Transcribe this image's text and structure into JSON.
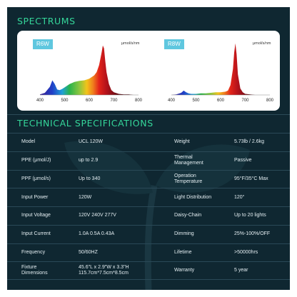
{
  "sections": {
    "spectrums_title": "SPECTRUMS",
    "specs_title": "TECHNICAL SPECIFICATIONS"
  },
  "chart_data": [
    {
      "type": "area",
      "label": "R6W",
      "ylabel": "μmol/s/nm",
      "x_ticks": [
        400,
        500,
        600,
        700,
        800
      ],
      "xlim": [
        400,
        800
      ],
      "x": [
        400,
        420,
        440,
        450,
        460,
        470,
        480,
        490,
        500,
        520,
        540,
        560,
        580,
        600,
        620,
        630,
        640,
        650,
        655,
        660,
        665,
        670,
        680,
        690,
        700,
        720,
        740,
        760,
        780,
        800
      ],
      "y": [
        0.01,
        0.04,
        0.15,
        0.27,
        0.2,
        0.1,
        0.09,
        0.11,
        0.14,
        0.2,
        0.24,
        0.26,
        0.27,
        0.3,
        0.36,
        0.42,
        0.55,
        0.78,
        0.91,
        0.86,
        0.63,
        0.42,
        0.2,
        0.09,
        0.05,
        0.02,
        0.01,
        0.01,
        0.0,
        0.0
      ]
    },
    {
      "type": "area",
      "label": "R8W",
      "ylabel": "μmol/s/nm",
      "x_ticks": [
        400,
        500,
        600,
        700,
        800
      ],
      "xlim": [
        400,
        800
      ],
      "x": [
        400,
        420,
        440,
        450,
        460,
        470,
        480,
        490,
        500,
        520,
        540,
        560,
        580,
        600,
        620,
        630,
        640,
        650,
        655,
        660,
        665,
        670,
        680,
        690,
        700,
        720,
        740,
        760,
        780,
        800
      ],
      "y": [
        0.0,
        0.01,
        0.04,
        0.08,
        0.05,
        0.03,
        0.02,
        0.02,
        0.02,
        0.03,
        0.03,
        0.04,
        0.05,
        0.05,
        0.06,
        0.08,
        0.18,
        0.48,
        0.78,
        0.95,
        0.75,
        0.38,
        0.12,
        0.05,
        0.02,
        0.01,
        0.0,
        0.0,
        0.0,
        0.0
      ]
    }
  ],
  "specs": [
    {
      "lk": "Model",
      "lv": "UCL 120W",
      "rk": "Weight",
      "rv": "5.73lb / 2.6kg"
    },
    {
      "lk": "PPE (μmol/J)",
      "lv": "up to 2.9",
      "rk": "Thermal\nManagement",
      "rv": "Passive"
    },
    {
      "lk": "PPF (μmol/s)",
      "lv": "Up to 340",
      "rk": "Operation\nTemperature",
      "rv": "95°F/35°C Max"
    },
    {
      "lk": "Input Power",
      "lv": "120W",
      "rk": "Light Distribution",
      "rv": "120°"
    },
    {
      "lk": "Input Voltage",
      "lv": "120V  240V  277V",
      "rk": "Daisy-Chain",
      "rv": "Up to 20 lights"
    },
    {
      "lk": "Input Current",
      "lv": "1.0A  0.5A  0.43A",
      "rk": "Dimming",
      "rv": "25%-100%/OFF"
    },
    {
      "lk": "Frequency",
      "lv": "50/60HZ",
      "rk": "Lifetime",
      "rv": ">50000hrs"
    },
    {
      "lk": "Fixture\nDimensions",
      "lv": "45.6\"L x 2.9\"W x 3.3\"H\n115.7cm*7.5cm*8.5cm",
      "rk": "Warranty",
      "rv": "5 year"
    }
  ],
  "colors": {
    "background": "#0f2731",
    "accent": "#35d69a",
    "label_badge": "#5fc7df"
  }
}
